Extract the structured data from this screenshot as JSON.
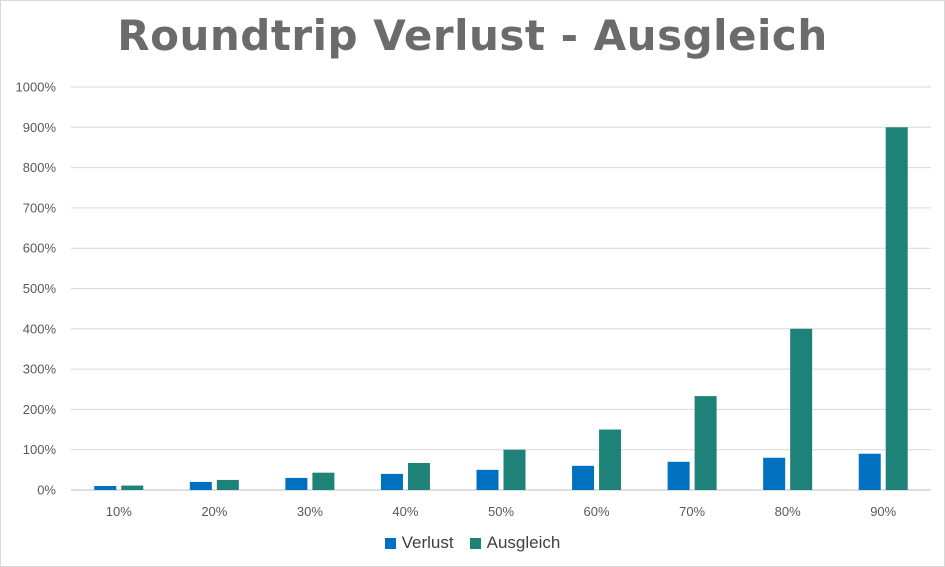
{
  "chart_data": {
    "type": "bar",
    "title": "Roundtrip Verlust - Ausgleich",
    "categories": [
      "10%",
      "20%",
      "30%",
      "40%",
      "50%",
      "60%",
      "70%",
      "80%",
      "90%"
    ],
    "series": [
      {
        "name": "Verlust",
        "color": "#0070C0",
        "values": [
          10,
          20,
          30,
          40,
          50,
          60,
          70,
          80,
          90
        ]
      },
      {
        "name": "Ausgleich",
        "color": "#1F8278",
        "values": [
          11,
          25,
          43,
          67,
          100,
          150,
          233,
          400,
          900
        ]
      }
    ],
    "ylim": [
      0,
      1000
    ],
    "yticks": [
      "0%",
      "100%",
      "200%",
      "300%",
      "400%",
      "500%",
      "600%",
      "700%",
      "800%",
      "900%",
      "1000%"
    ],
    "grid": true,
    "legend_position": "bottom"
  }
}
